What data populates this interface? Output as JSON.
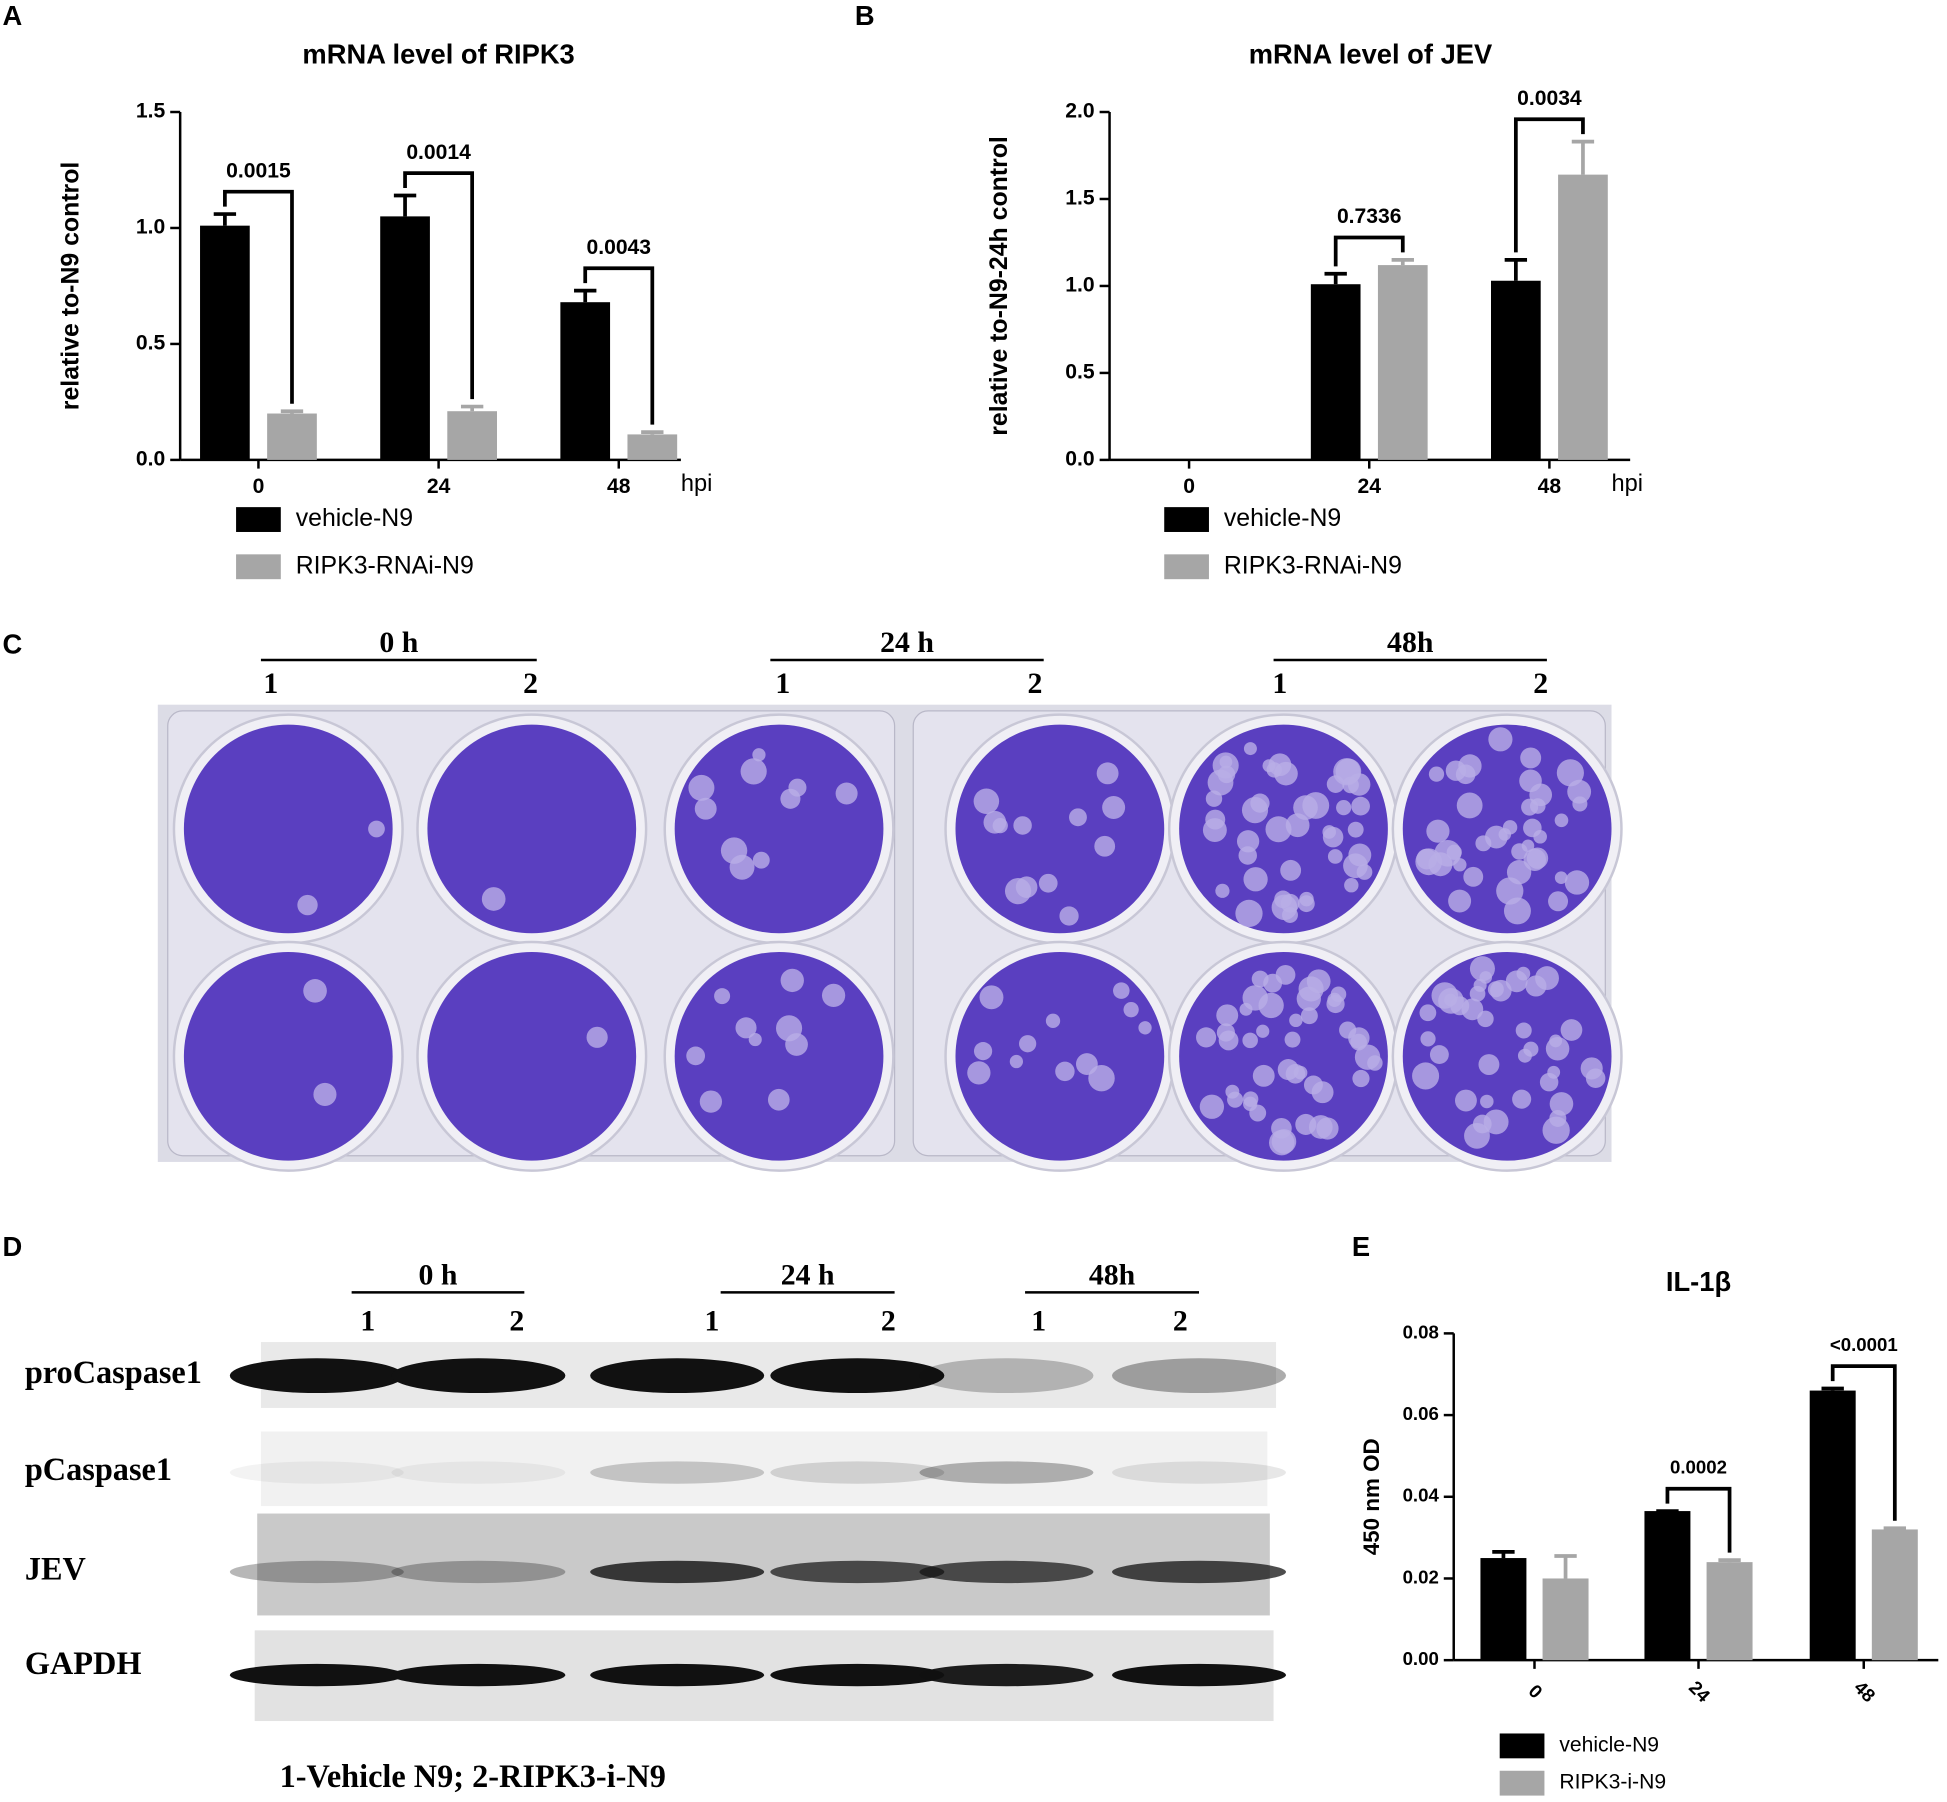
{
  "panel_labels": [
    "A",
    "B",
    "C",
    "D",
    "E"
  ],
  "chart_data": [
    {
      "type": "bar",
      "title": "mRNA level of RIPK3",
      "y_label": "relative to-N9 control",
      "x_label": "hpi",
      "categories": [
        "0",
        "24",
        "48"
      ],
      "series": [
        {
          "name": "vehicle-N9",
          "color": "#000000",
          "values": [
            1.01,
            1.05,
            0.68
          ],
          "errors": [
            0.05,
            0.09,
            0.05
          ]
        },
        {
          "name": "RIPK3-RNAi-N9",
          "color": "#a6a6a6",
          "values": [
            0.2,
            0.21,
            0.11
          ],
          "errors": [
            0.01,
            0.02,
            0.01
          ]
        }
      ],
      "pvalues": [
        "0.0015",
        "0.0014",
        "0.0043"
      ],
      "ylim": [
        0,
        1.5
      ],
      "yticks": [
        {
          "value": 0,
          "label": "0.0"
        },
        0.5,
        {
          "value": 1,
          "label": "1.0"
        },
        1.5
      ]
    },
    {
      "type": "bar",
      "title": "mRNA level of JEV",
      "y_label": "relative to-N9-24h control",
      "x_label": "hpi",
      "categories": [
        "0",
        "24",
        "48"
      ],
      "series": [
        {
          "name": "vehicle-N9",
          "color": "#000000",
          "values": [
            0,
            1.01,
            1.03
          ],
          "errors": [
            0,
            0.06,
            0.12
          ]
        },
        {
          "name": "RIPK3-RNAi-N9",
          "color": "#a6a6a6",
          "values": [
            0,
            1.12,
            1.64
          ],
          "errors": [
            0,
            0.03,
            0.19
          ]
        }
      ],
      "pvalues": [
        null,
        "0.7336",
        "0.0034"
      ],
      "ylim": [
        0,
        2
      ],
      "yticks": [
        {
          "value": 0,
          "label": "0.0"
        },
        0.5,
        {
          "value": 1,
          "label": "1.0"
        },
        1.5,
        {
          "value": 2,
          "label": "2.0"
        }
      ]
    },
    {
      "type": "bar",
      "title": "IL-1β",
      "y_label": "450 nm OD",
      "categories": [
        "0",
        "24",
        "48"
      ],
      "series": [
        {
          "name": "vehicle-N9",
          "color": "#000000",
          "values": [
            0.025,
            0.0365,
            0.066
          ],
          "errors": [
            0.0015,
            0,
            0.0005
          ]
        },
        {
          "name": "RIPK3-i-N9",
          "color": "#a6a6a6",
          "values": [
            0.02,
            0.024,
            0.032
          ],
          "errors": [
            0.0055,
            0.0005,
            0.0003
          ]
        }
      ],
      "pvalues": [
        null,
        "0.0002",
        "<0.0001"
      ],
      "ylim": [
        0,
        0.08
      ],
      "yticks": [
        {
          "value": 0,
          "label": "0.00"
        },
        0.02,
        0.04,
        0.06,
        0.08
      ]
    }
  ],
  "plate": {
    "groups": [
      {
        "label": "0 h",
        "lanes": [
          "1",
          "2"
        ]
      },
      {
        "label": "24 h",
        "lanes": [
          "1",
          "2"
        ]
      },
      {
        "label": "48h",
        "lanes": [
          "1",
          "2"
        ]
      }
    ]
  },
  "blot": {
    "groups": [
      {
        "label": "0 h",
        "lanes": [
          "1",
          "2"
        ]
      },
      {
        "label": "24 h",
        "lanes": [
          "1",
          "2"
        ]
      },
      {
        "label": "48h",
        "lanes": [
          "1",
          "2"
        ]
      }
    ],
    "rows": [
      "proCaspase1",
      "pCaspase1",
      "JEV",
      "GAPDH"
    ],
    "caption": "1-Vehicle N9; 2-RIPK3-i-N9"
  }
}
